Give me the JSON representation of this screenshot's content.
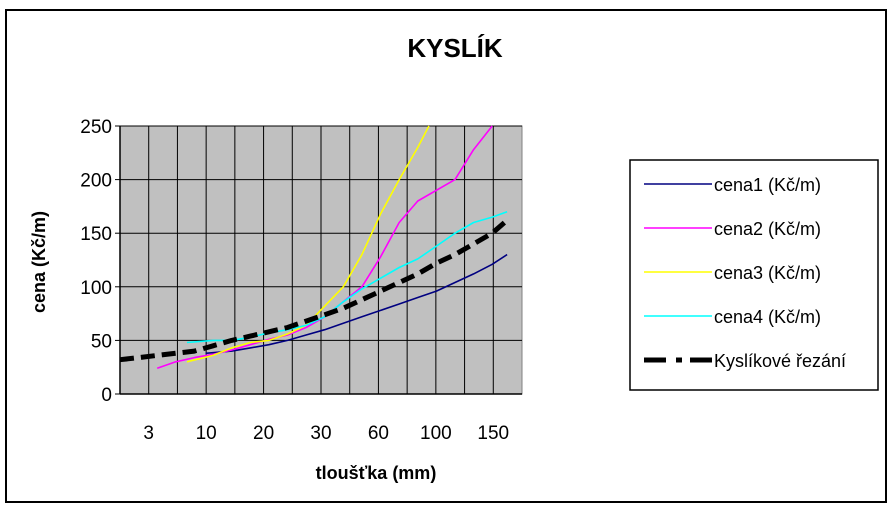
{
  "chart_data": {
    "type": "line",
    "title": "KYSLÍK",
    "xlabel": "tloušťka (mm)",
    "ylabel": "cena (Kč/m)",
    "ylim": [
      0,
      250
    ],
    "yticks": [
      "0",
      "50",
      "100",
      "150",
      "200",
      "250"
    ],
    "xticks": [
      "3",
      "10",
      "20",
      "30",
      "60",
      "100",
      "150"
    ],
    "grid": true,
    "legend_position": "right",
    "plot_background": "#C0C0C0",
    "series": [
      {
        "name": "cena1 (Kč/m)",
        "color": "#000080",
        "style": "solid",
        "points": [
          [
            2.3,
            38
          ],
          [
            3.0,
            40
          ],
          [
            3.5,
            43
          ],
          [
            4.0,
            46
          ],
          [
            4.5,
            50
          ],
          [
            5.0,
            55
          ],
          [
            5.5,
            60
          ],
          [
            6.0,
            66
          ],
          [
            6.5,
            72
          ],
          [
            7.0,
            78
          ],
          [
            7.5,
            84
          ],
          [
            8.0,
            90
          ],
          [
            8.5,
            96
          ],
          [
            9.0,
            104
          ],
          [
            9.5,
            112
          ],
          [
            10.0,
            121
          ],
          [
            10.4,
            130
          ]
        ]
      },
      {
        "name": "cena2 (Kč/m)",
        "color": "#FF00FF",
        "style": "solid",
        "points": [
          [
            1.0,
            24
          ],
          [
            1.5,
            30
          ],
          [
            2.0,
            34
          ],
          [
            2.5,
            37
          ],
          [
            3.0,
            41
          ],
          [
            3.5,
            46
          ],
          [
            4.0,
            51
          ],
          [
            4.5,
            55
          ],
          [
            5.0,
            62
          ],
          [
            5.5,
            72
          ],
          [
            6.0,
            86
          ],
          [
            6.5,
            100
          ],
          [
            7.0,
            128
          ],
          [
            7.5,
            160
          ],
          [
            8.0,
            180
          ],
          [
            9.0,
            200
          ],
          [
            9.5,
            228
          ],
          [
            10.0,
            250
          ]
        ]
      },
      {
        "name": "cena3 (Kč/m)",
        "color": "#FFFF00",
        "style": "solid",
        "points": [
          [
            1.8,
            30
          ],
          [
            2.5,
            36
          ],
          [
            3.0,
            43
          ],
          [
            3.5,
            48
          ],
          [
            4.0,
            50
          ],
          [
            4.5,
            56
          ],
          [
            5.0,
            64
          ],
          [
            5.5,
            82
          ],
          [
            6.0,
            100
          ],
          [
            6.5,
            130
          ],
          [
            7.0,
            168
          ],
          [
            7.5,
            200
          ],
          [
            8.0,
            230
          ],
          [
            8.3,
            250
          ]
        ]
      },
      {
        "name": "cena4 (Kč/m)",
        "color": "#00FFFF",
        "style": "solid",
        "points": [
          [
            1.8,
            48
          ],
          [
            2.5,
            50
          ],
          [
            3.0,
            50
          ],
          [
            3.5,
            53
          ],
          [
            4.0,
            57
          ],
          [
            4.5,
            60
          ],
          [
            5.0,
            64
          ],
          [
            5.5,
            72
          ],
          [
            6.0,
            86
          ],
          [
            6.5,
            98
          ],
          [
            7.0,
            108
          ],
          [
            7.5,
            118
          ],
          [
            8.0,
            126
          ],
          [
            8.5,
            138
          ],
          [
            9.0,
            150
          ],
          [
            9.5,
            160
          ],
          [
            10.0,
            165
          ],
          [
            10.4,
            170
          ]
        ]
      },
      {
        "name": "Kyslíkové řezání",
        "color": "#000000",
        "style": "dashed",
        "points": [
          [
            0.0,
            32
          ],
          [
            0.5,
            34
          ],
          [
            1.0,
            36
          ],
          [
            2.0,
            40
          ],
          [
            2.5,
            45
          ],
          [
            3.0,
            50
          ],
          [
            3.5,
            54
          ],
          [
            4.0,
            58
          ],
          [
            4.5,
            62
          ],
          [
            5.0,
            68
          ],
          [
            5.5,
            74
          ],
          [
            6.0,
            80
          ],
          [
            6.5,
            88
          ],
          [
            7.0,
            96
          ],
          [
            7.5,
            104
          ],
          [
            8.0,
            112
          ],
          [
            8.5,
            122
          ],
          [
            9.0,
            130
          ],
          [
            9.5,
            140
          ],
          [
            10.0,
            150
          ],
          [
            10.4,
            162
          ]
        ]
      }
    ]
  }
}
